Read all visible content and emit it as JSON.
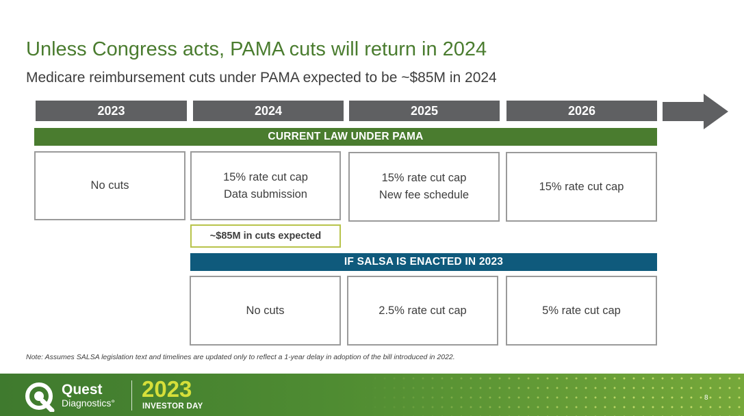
{
  "title": "Unless Congress acts, PAMA cuts will return in 2024",
  "subtitle": "Medicare reimbursement cuts under PAMA expected to be ~$85M in 2024",
  "years": [
    "2023",
    "2024",
    "2025",
    "2026"
  ],
  "current_law": {
    "header": "CURRENT LAW UNDER PAMA",
    "boxes": [
      {
        "line1": "No cuts",
        "line2": ""
      },
      {
        "line1": "15% rate cut cap",
        "line2": "Data submission"
      },
      {
        "line1": "15% rate cut cap",
        "line2": "New fee schedule"
      },
      {
        "line1": "15% rate cut cap",
        "line2": ""
      }
    ],
    "callout": "~$85M in cuts expected"
  },
  "salsa": {
    "header": "IF SALSA IS ENACTED IN 2023",
    "boxes": [
      "No cuts",
      "2.5% rate cut cap",
      "5% rate cut cap"
    ]
  },
  "note": "Note: Assumes SALSA legislation text and timelines are updated only to reflect a 1-year delay in adoption of the bill introduced in 2022.",
  "footer": {
    "brand_name": "Quest",
    "brand_sub": "Diagnostics°",
    "event_year": "2023",
    "event_name": "INVESTOR DAY",
    "page_number": "8"
  },
  "colors": {
    "title_green": "#4a7c2f",
    "year_gray": "#5f6062",
    "band_blue": "#0f5a7c",
    "callout_border": "#b7c34a",
    "event_year_yellow": "#d6df3a"
  }
}
